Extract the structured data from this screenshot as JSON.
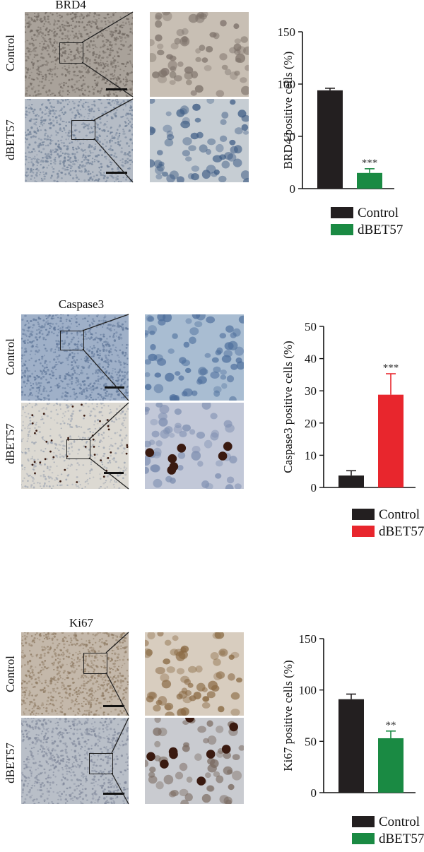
{
  "colors": {
    "control": "#231f20",
    "dbet_green": "#1a8a43",
    "dbet_red": "#e8262d"
  },
  "panels": [
    {
      "marker": "BRD4",
      "row_labels": [
        "Control",
        "dBET57"
      ],
      "tissue_colors": {
        "control_low": "#a9a29a",
        "control_zoom": "#c8bfb4",
        "dbet_low": "#b5bcc6",
        "dbet_zoom": "#c6cdd3"
      },
      "chart_data": {
        "type": "bar",
        "ylabel": "BRD4 positive cells (%)",
        "ylim": [
          0,
          150
        ],
        "yticks": [
          "0",
          "50",
          "100",
          "150"
        ],
        "series": [
          {
            "name": "Control",
            "value": 94,
            "error": 2,
            "color": "#231f20",
            "significance": ""
          },
          {
            "name": "dBET57",
            "value": 15,
            "error": 4,
            "color": "#1a8a43",
            "significance": "***"
          }
        ],
        "legend": [
          "Control",
          "dBET57"
        ]
      }
    },
    {
      "marker": "Caspase3",
      "row_labels": [
        "Control",
        "dBET57"
      ],
      "tissue_colors": {
        "control_low": "#9fb0c8",
        "control_zoom": "#a9bdd2",
        "dbet_low": "#dcd9d2",
        "dbet_zoom": "#c2c8d8"
      },
      "chart_data": {
        "type": "bar",
        "ylabel": "Caspase3 positive cells (%)",
        "ylim": [
          0,
          50
        ],
        "yticks": [
          "0",
          "10",
          "20",
          "30",
          "40",
          "50"
        ],
        "series": [
          {
            "name": "Control",
            "value": 3.7,
            "error": 1.5,
            "color": "#231f20",
            "significance": ""
          },
          {
            "name": "dBET57",
            "value": 28.8,
            "error": 6.5,
            "color": "#e8262d",
            "significance": "***"
          }
        ],
        "legend": [
          "Control",
          "dBET57"
        ]
      }
    },
    {
      "marker": "Ki67",
      "row_labels": [
        "Control",
        "dBET57"
      ],
      "tissue_colors": {
        "control_low": "#c4b8aa",
        "control_zoom": "#d8cdbf",
        "dbet_low": "#b9bfc8",
        "dbet_zoom": "#c9cbd0"
      },
      "chart_data": {
        "type": "bar",
        "ylabel": "Ki67 positive cells (%)",
        "ylim": [
          0,
          150
        ],
        "yticks": [
          "0",
          "50",
          "100",
          "150"
        ],
        "series": [
          {
            "name": "Control",
            "value": 91,
            "error": 5,
            "color": "#231f20",
            "significance": ""
          },
          {
            "name": "dBET57",
            "value": 53,
            "error": 7,
            "color": "#1a8a43",
            "significance": "**"
          }
        ],
        "legend": [
          "Control",
          "dBET57"
        ]
      }
    }
  ]
}
